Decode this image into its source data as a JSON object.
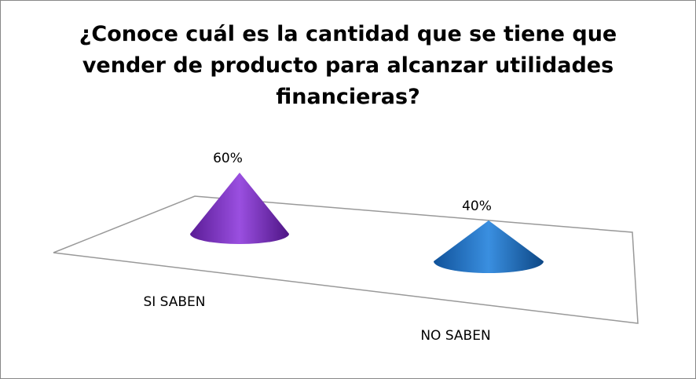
{
  "chart_data": {
    "type": "cone",
    "title": "¿Conoce cuál es la cantidad que se tiene que vender de producto para alcanzar utilidades financieras?",
    "categories": [
      "SI SABEN",
      "NO SABEN"
    ],
    "values": [
      60,
      40
    ],
    "value_labels": [
      "60%",
      "40%"
    ],
    "colors": [
      "#7a2fbf",
      "#1f6fc2"
    ]
  }
}
